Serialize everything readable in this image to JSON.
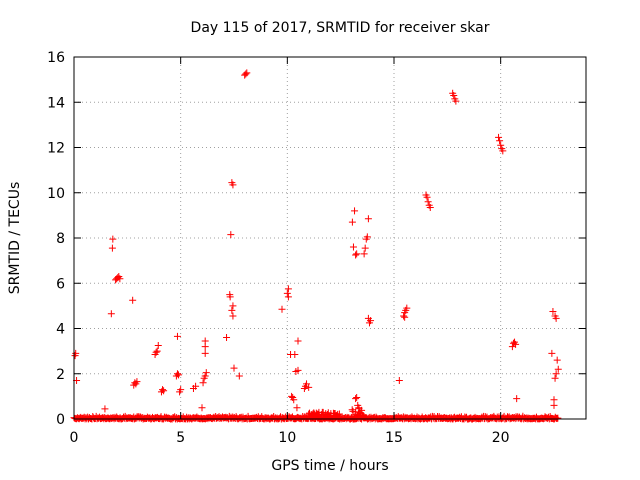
{
  "chart_data": {
    "type": "scatter",
    "title": "Day 115 of 2017, SRMTID for receiver skar",
    "xlabel": "GPS time / hours",
    "ylabel": "SRMTID / TECUs",
    "xlim": [
      0,
      24
    ],
    "ylim": [
      0,
      16
    ],
    "xticks": [
      0,
      5,
      10,
      15,
      20
    ],
    "yticks": [
      0,
      2,
      4,
      6,
      8,
      10,
      12,
      14,
      16
    ],
    "grid": true,
    "marker": "+",
    "color": "#ff0000",
    "baseline": {
      "x_start": 0.0,
      "x_end": 22.7,
      "step": 0.08,
      "y_typical": 0.05,
      "y_max": 0.12
    },
    "bursts": [
      {
        "x": [
          11.0,
          12.5
        ],
        "y_max": 0.3
      },
      {
        "x": [
          13.0,
          13.6
        ],
        "y_max": 0.5
      }
    ],
    "points": [
      [
        0.05,
        2.8
      ],
      [
        0.08,
        2.9
      ],
      [
        0.12,
        1.7
      ],
      [
        1.45,
        0.45
      ],
      [
        1.75,
        4.65
      ],
      [
        1.8,
        7.55
      ],
      [
        1.82,
        7.95
      ],
      [
        1.95,
        6.15
      ],
      [
        2.0,
        6.2
      ],
      [
        2.05,
        6.25
      ],
      [
        2.1,
        6.3
      ],
      [
        2.15,
        6.2
      ],
      [
        2.75,
        5.25
      ],
      [
        2.8,
        1.5
      ],
      [
        2.85,
        1.6
      ],
      [
        2.9,
        1.55
      ],
      [
        2.95,
        1.65
      ],
      [
        3.8,
        2.85
      ],
      [
        3.85,
        2.95
      ],
      [
        3.9,
        3.0
      ],
      [
        3.95,
        3.25
      ],
      [
        4.1,
        1.2
      ],
      [
        4.15,
        1.3
      ],
      [
        4.2,
        1.25
      ],
      [
        4.85,
        3.65
      ],
      [
        4.8,
        1.9
      ],
      [
        4.85,
        2.0
      ],
      [
        4.9,
        1.95
      ],
      [
        4.95,
        1.2
      ],
      [
        5.0,
        1.3
      ],
      [
        5.6,
        1.35
      ],
      [
        5.7,
        1.45
      ],
      [
        6.0,
        0.5
      ],
      [
        6.05,
        1.6
      ],
      [
        6.1,
        1.8
      ],
      [
        6.15,
        1.9
      ],
      [
        6.2,
        2.05
      ],
      [
        6.15,
        2.9
      ],
      [
        6.15,
        3.2
      ],
      [
        6.15,
        3.45
      ],
      [
        7.15,
        3.6
      ],
      [
        7.3,
        5.5
      ],
      [
        7.32,
        5.4
      ],
      [
        7.35,
        8.15
      ],
      [
        7.4,
        10.45
      ],
      [
        7.45,
        10.35
      ],
      [
        7.4,
        4.8
      ],
      [
        7.45,
        5.0
      ],
      [
        7.45,
        4.55
      ],
      [
        7.5,
        2.25
      ],
      [
        7.75,
        1.9
      ],
      [
        8.0,
        15.2
      ],
      [
        8.05,
        15.25
      ],
      [
        8.1,
        15.3
      ],
      [
        9.75,
        4.85
      ],
      [
        10.0,
        5.55
      ],
      [
        10.05,
        5.75
      ],
      [
        10.05,
        5.4
      ],
      [
        10.15,
        2.85
      ],
      [
        10.2,
        1.0
      ],
      [
        10.25,
        0.95
      ],
      [
        10.3,
        0.85
      ],
      [
        10.35,
        2.85
      ],
      [
        10.4,
        2.1
      ],
      [
        10.5,
        2.15
      ],
      [
        10.5,
        3.45
      ],
      [
        10.45,
        0.5
      ],
      [
        10.8,
        1.35
      ],
      [
        10.85,
        1.45
      ],
      [
        10.9,
        1.55
      ],
      [
        11.0,
        1.4
      ],
      [
        13.05,
        8.7
      ],
      [
        13.15,
        9.2
      ],
      [
        13.1,
        7.6
      ],
      [
        13.2,
        7.25
      ],
      [
        13.25,
        7.3
      ],
      [
        13.2,
        0.9
      ],
      [
        13.25,
        0.95
      ],
      [
        13.3,
        0.6
      ],
      [
        13.35,
        0.5
      ],
      [
        13.6,
        7.3
      ],
      [
        13.65,
        7.55
      ],
      [
        13.7,
        7.95
      ],
      [
        13.75,
        8.05
      ],
      [
        13.8,
        8.85
      ],
      [
        13.8,
        4.45
      ],
      [
        13.85,
        4.25
      ],
      [
        13.9,
        4.35
      ],
      [
        15.25,
        1.7
      ],
      [
        15.45,
        4.55
      ],
      [
        15.5,
        4.7
      ],
      [
        15.55,
        4.8
      ],
      [
        15.6,
        4.9
      ],
      [
        15.5,
        4.5
      ],
      [
        16.5,
        9.9
      ],
      [
        16.55,
        9.8
      ],
      [
        16.6,
        9.6
      ],
      [
        16.65,
        9.45
      ],
      [
        16.7,
        9.35
      ],
      [
        17.75,
        14.4
      ],
      [
        17.8,
        14.3
      ],
      [
        17.85,
        14.15
      ],
      [
        17.9,
        14.05
      ],
      [
        19.9,
        12.45
      ],
      [
        19.95,
        12.3
      ],
      [
        20.0,
        12.1
      ],
      [
        20.05,
        11.95
      ],
      [
        20.1,
        11.85
      ],
      [
        20.55,
        3.2
      ],
      [
        20.6,
        3.35
      ],
      [
        20.65,
        3.4
      ],
      [
        20.7,
        3.3
      ],
      [
        20.75,
        0.9
      ],
      [
        22.4,
        2.9
      ],
      [
        22.45,
        4.75
      ],
      [
        22.5,
        0.85
      ],
      [
        22.55,
        4.55
      ],
      [
        22.6,
        4.45
      ],
      [
        22.55,
        1.8
      ],
      [
        22.6,
        2.0
      ],
      [
        22.65,
        2.6
      ],
      [
        22.7,
        2.2
      ],
      [
        22.5,
        0.6
      ]
    ]
  }
}
